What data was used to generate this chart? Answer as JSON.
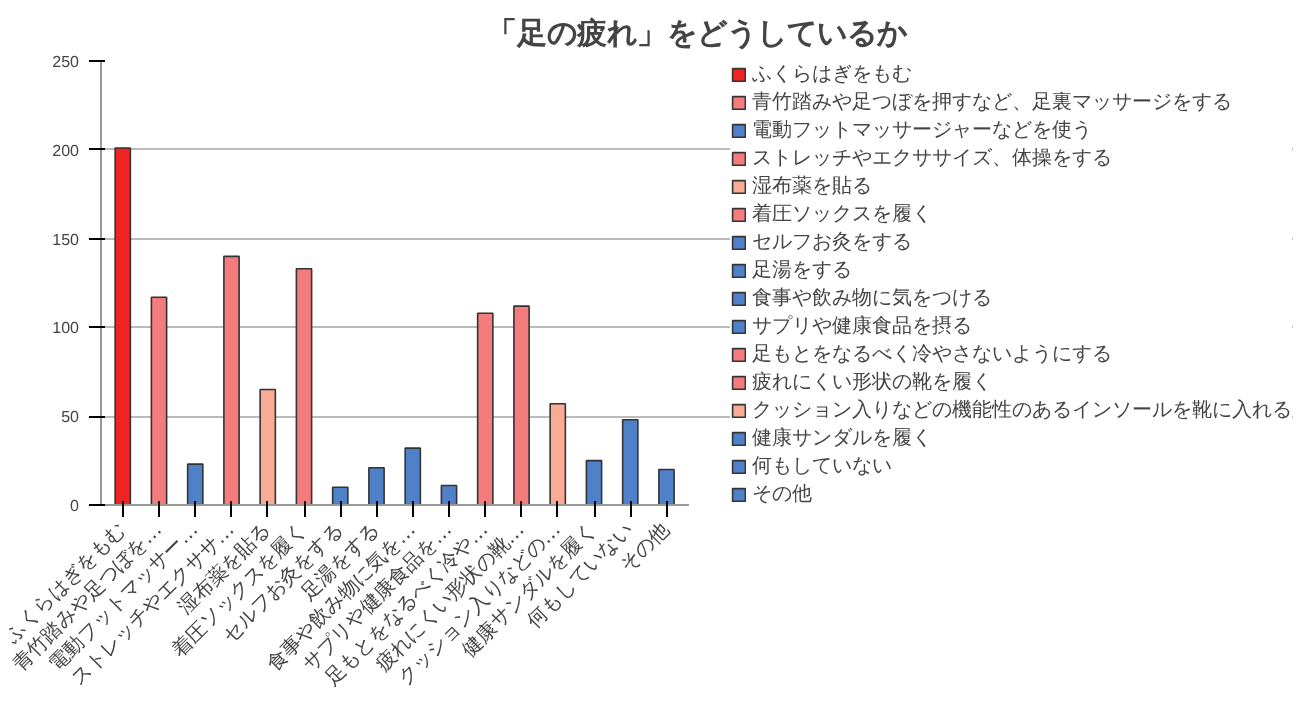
{
  "chart_data": {
    "type": "bar",
    "title": "「足の疲れ」をどうしているか",
    "categories": [
      "ふくらはぎをもむ",
      "青竹踏みや足つぼを…",
      "電動フットマッサー…",
      "ストレッチやエクササ…",
      "湿布薬を貼る",
      "着圧ソックスを履く",
      "セルフお灸をする",
      "足湯をする",
      "食事や飲み物に気を…",
      "サプリや健康食品を…",
      "足もとをなるべく冷や…",
      "疲れにくい形状の靴…",
      "クッション入りなどの…",
      "健康サンダルを履く",
      "何もしていない",
      "その他"
    ],
    "series": [
      {
        "name": "ふくらはぎをもむ",
        "color": "#ee2424",
        "values": [
          201,
          null,
          null,
          null,
          null,
          null,
          null,
          null,
          null,
          null,
          null,
          null,
          null,
          null,
          null,
          null
        ]
      },
      {
        "name": "青竹踏みや足つぼを押すなど、足裏マッサージをする",
        "color": "#f47c7c",
        "values": [
          null,
          117,
          null,
          null,
          null,
          null,
          null,
          null,
          null,
          null,
          null,
          null,
          null,
          null,
          null,
          null
        ]
      },
      {
        "name": "電動フットマッサージャーなどを使う",
        "color": "#4f81c9",
        "values": [
          null,
          null,
          23,
          null,
          null,
          null,
          null,
          null,
          null,
          null,
          null,
          null,
          null,
          null,
          null,
          null
        ]
      },
      {
        "name": "ストレッチやエクササイズ、体操をする",
        "color": "#f47c7c",
        "values": [
          null,
          null,
          null,
          140,
          null,
          null,
          null,
          null,
          null,
          null,
          null,
          null,
          null,
          null,
          null,
          null
        ]
      },
      {
        "name": "湿布薬を貼る",
        "color": "#f9ab94",
        "values": [
          null,
          null,
          null,
          null,
          65,
          null,
          null,
          null,
          null,
          null,
          null,
          null,
          null,
          null,
          null,
          null
        ]
      },
      {
        "name": "着圧ソックスを履く",
        "color": "#f47c7c",
        "values": [
          null,
          null,
          null,
          null,
          null,
          133,
          null,
          null,
          null,
          null,
          null,
          null,
          null,
          null,
          null,
          null
        ]
      },
      {
        "name": "セルフお灸をする",
        "color": "#4f81c9",
        "values": [
          null,
          null,
          null,
          null,
          null,
          null,
          10,
          null,
          null,
          null,
          null,
          null,
          null,
          null,
          null,
          null
        ]
      },
      {
        "name": "足湯をする",
        "color": "#4f81c9",
        "values": [
          null,
          null,
          null,
          null,
          null,
          null,
          null,
          21,
          null,
          null,
          null,
          null,
          null,
          null,
          null,
          null
        ]
      },
      {
        "name": "食事や飲み物に気をつける",
        "color": "#4f81c9",
        "values": [
          null,
          null,
          null,
          null,
          null,
          null,
          null,
          null,
          32,
          null,
          null,
          null,
          null,
          null,
          null,
          null
        ]
      },
      {
        "name": "サプリや健康食品を摂る",
        "color": "#4f81c9",
        "values": [
          null,
          null,
          null,
          null,
          null,
          null,
          null,
          null,
          null,
          11,
          null,
          null,
          null,
          null,
          null,
          null
        ]
      },
      {
        "name": "足もとをなるべく冷やさないようにする",
        "color": "#f47c7c",
        "values": [
          null,
          null,
          null,
          null,
          null,
          null,
          null,
          null,
          null,
          null,
          108,
          null,
          null,
          null,
          null,
          null
        ]
      },
      {
        "name": "疲れにくい形状の靴を履く",
        "color": "#f47c7c",
        "values": [
          null,
          null,
          null,
          null,
          null,
          null,
          null,
          null,
          null,
          null,
          null,
          112,
          null,
          null,
          null,
          null
        ]
      },
      {
        "name": "クッション入りなどの機能性のあるインソールを靴に入れる",
        "color": "#f9ab94",
        "values": [
          null,
          null,
          null,
          null,
          null,
          null,
          null,
          null,
          null,
          null,
          null,
          null,
          57,
          null,
          null,
          null
        ]
      },
      {
        "name": "健康サンダルを履く",
        "color": "#4f81c9",
        "values": [
          null,
          null,
          null,
          null,
          null,
          null,
          null,
          null,
          null,
          null,
          null,
          null,
          null,
          25,
          null,
          null
        ]
      },
      {
        "name": "何もしていない",
        "color": "#4f81c9",
        "values": [
          null,
          null,
          null,
          null,
          null,
          null,
          null,
          null,
          null,
          null,
          null,
          null,
          null,
          null,
          48,
          null
        ]
      },
      {
        "name": "その他",
        "color": "#4f81c9",
        "values": [
          null,
          null,
          null,
          null,
          null,
          null,
          null,
          null,
          null,
          null,
          null,
          null,
          null,
          null,
          null,
          20
        ]
      }
    ],
    "ylim": [
      0,
      250
    ],
    "yticks": [
      0,
      50,
      100,
      150,
      200,
      250
    ],
    "grid": "y",
    "legend": "right"
  }
}
